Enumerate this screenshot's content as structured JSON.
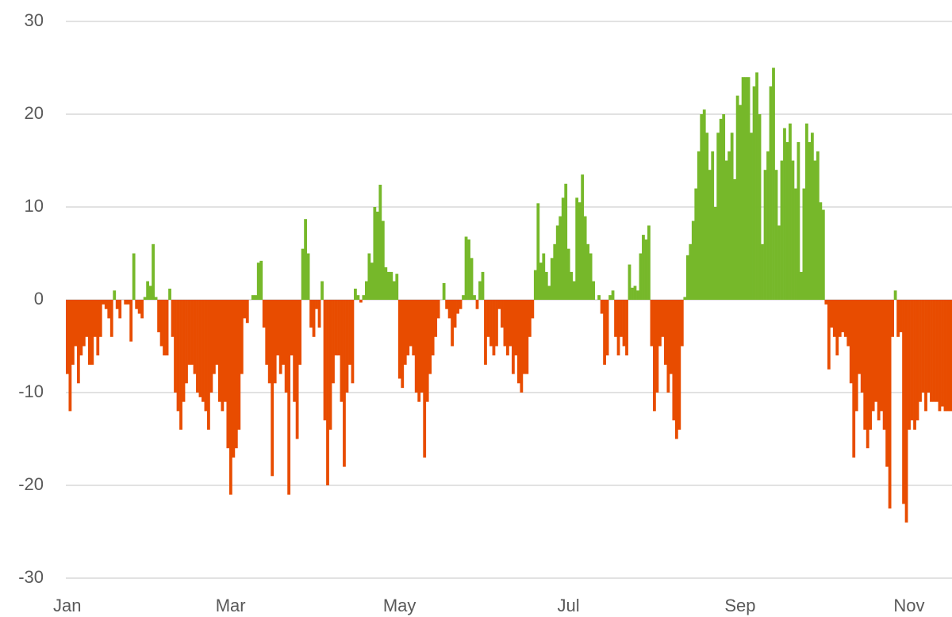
{
  "chart_data": {
    "type": "bar",
    "categories": [
      "Jan",
      null,
      null,
      null,
      null,
      null,
      null,
      null,
      null,
      null,
      null,
      null,
      null,
      null,
      null,
      null,
      null,
      null,
      null,
      null,
      null,
      null,
      null,
      null,
      null,
      null,
      null,
      null,
      null,
      null,
      null,
      null,
      null,
      null,
      null,
      null,
      null,
      null,
      null,
      null,
      null,
      null,
      null,
      null,
      null,
      null,
      null,
      null,
      null,
      null,
      null,
      null,
      null,
      null,
      null,
      null,
      null,
      null,
      null,
      "Mar",
      null,
      null,
      null,
      null,
      null,
      null,
      null,
      null,
      null,
      null,
      null,
      null,
      null,
      null,
      null,
      null,
      null,
      null,
      null,
      null,
      null,
      null,
      null,
      null,
      null,
      null,
      null,
      null,
      null,
      null,
      null,
      null,
      null,
      null,
      null,
      null,
      null,
      null,
      null,
      null,
      null,
      null,
      null,
      null,
      null,
      null,
      null,
      null,
      null,
      null,
      null,
      null,
      null,
      null,
      null,
      null,
      null,
      null,
      null,
      null,
      "May",
      null,
      null,
      null,
      null,
      null,
      null,
      null,
      null,
      null,
      null,
      null,
      null,
      null,
      null,
      null,
      null,
      null,
      null,
      null,
      null,
      null,
      null,
      null,
      null,
      null,
      null,
      null,
      null,
      null,
      null,
      null,
      null,
      null,
      null,
      null,
      null,
      null,
      null,
      null,
      null,
      null,
      null,
      null,
      null,
      null,
      null,
      null,
      null,
      null,
      null,
      null,
      null,
      null,
      null,
      null,
      null,
      null,
      null,
      null,
      null,
      "Jul",
      null,
      null,
      null,
      null,
      null,
      null,
      null,
      null,
      null,
      null,
      null,
      null,
      null,
      null,
      null,
      null,
      null,
      null,
      null,
      null,
      null,
      null,
      null,
      null,
      null,
      null,
      null,
      null,
      null,
      null,
      null,
      null,
      null,
      null,
      null,
      null,
      null,
      null,
      null,
      null,
      null,
      null,
      null,
      null,
      null,
      null,
      null,
      null,
      null,
      null,
      null,
      null,
      null,
      null,
      null,
      null,
      null,
      null,
      null,
      null,
      null,
      "Sep",
      null,
      null,
      null,
      null,
      null,
      null,
      null,
      null,
      null,
      null,
      null,
      null,
      null,
      null,
      null,
      null,
      null,
      null,
      null,
      null,
      null,
      null,
      null,
      null,
      null,
      null,
      null,
      null,
      null,
      null,
      null,
      null,
      null,
      null,
      null,
      null,
      null,
      null,
      null,
      null,
      null,
      null,
      null,
      null,
      null,
      null,
      null,
      null,
      null,
      null,
      null,
      null,
      null,
      null,
      null,
      null,
      null,
      null,
      null,
      null,
      "Nov",
      null,
      null,
      null,
      null,
      null,
      null,
      null,
      null,
      null,
      null,
      null,
      null,
      null,
      null,
      null
    ],
    "values": [
      -8,
      -12,
      -7,
      -5,
      -9,
      -6,
      -5,
      -4,
      -7,
      -7,
      -4,
      -6,
      -4,
      -0.5,
      -1,
      -2,
      -4,
      1,
      -1,
      -2,
      0,
      -0.5,
      -0.5,
      -4.5,
      5,
      -1,
      -1.5,
      -2,
      0.3,
      2,
      1.5,
      6,
      0.3,
      -3.5,
      -5,
      -6,
      -6,
      1.2,
      -4,
      -10,
      -12,
      -14,
      -11,
      -9,
      -7,
      -7,
      -8,
      -10,
      -10.5,
      -11,
      -12,
      -14,
      -10,
      -8,
      -7,
      -11,
      -12,
      -11,
      -16,
      -21,
      -17,
      -16,
      -14,
      -8,
      -2,
      -2.5,
      0,
      0.5,
      0.5,
      4,
      4.2,
      -3,
      -7,
      -9,
      -19,
      -9,
      -6,
      -8,
      -7,
      -10,
      -21,
      -6,
      -11,
      -15,
      -7,
      5.5,
      8.7,
      5,
      -3,
      -4,
      -1,
      -3,
      2,
      -13,
      -20,
      -14,
      -9,
      -6,
      -6,
      -11,
      -18,
      -10,
      -7,
      -9,
      1.2,
      0.5,
      -0.3,
      0.5,
      2,
      5,
      4,
      10,
      9.5,
      12.4,
      8.5,
      3.5,
      3,
      3,
      2,
      2.8,
      -8.5,
      -9.5,
      -7,
      -6,
      -5,
      -6,
      -10,
      -11,
      -10,
      -17,
      -11,
      -8,
      -6,
      -4,
      -2,
      0,
      1.8,
      -1,
      -2,
      -5,
      -3,
      -1.5,
      -1,
      0.5,
      6.8,
      6.5,
      4.5,
      0.5,
      -1,
      2,
      3,
      -7,
      -4,
      -5,
      -6,
      -5,
      -1,
      -3,
      -5,
      -6,
      -5,
      -8,
      -6,
      -9,
      -10,
      -8,
      -8,
      -4,
      -2,
      3.2,
      10.4,
      4,
      5,
      3,
      1.5,
      4.5,
      6,
      8,
      9,
      11,
      12.5,
      5.5,
      3,
      2,
      11,
      10.5,
      13.5,
      9,
      6,
      5,
      2,
      0,
      0.5,
      -1.5,
      -7,
      -6,
      0.5,
      1,
      -4,
      -6,
      -4,
      -5,
      -6,
      3.8,
      1.3,
      1.5,
      1,
      5,
      7,
      6.5,
      8,
      -5,
      -12,
      -10,
      -5,
      -4,
      -7,
      -10,
      -8,
      -13,
      -15,
      -14,
      -5,
      0.3,
      4.8,
      6,
      8.5,
      12,
      16,
      20,
      20.5,
      18,
      14,
      16,
      10,
      18,
      19.5,
      20,
      15,
      16,
      18,
      13,
      22,
      21,
      24,
      24,
      24,
      18,
      23,
      24.5,
      20,
      6,
      14,
      16,
      23,
      25,
      14,
      8,
      15,
      18.5,
      17,
      19,
      15,
      12,
      17,
      3,
      12,
      19,
      17,
      18,
      15,
      16,
      10.5,
      9.7,
      -0.5,
      -7.5,
      -3,
      -4,
      -6,
      -4,
      -3.5,
      -4,
      -5,
      -9,
      -17,
      -12,
      -8,
      -10,
      -14,
      -16,
      -14,
      -12,
      -11,
      -13,
      -12,
      -14,
      -18,
      -22.5,
      -4,
      1,
      -4,
      -3.5,
      -22,
      -24,
      -14,
      -13,
      -14,
      -13,
      -11,
      -10,
      -12,
      -10,
      -11,
      -11,
      -11,
      -12,
      -11.5,
      -12,
      -12,
      -12
    ],
    "positive_color": "#76b82a",
    "negative_color": "#e84c00",
    "ylim": [
      -30,
      30
    ],
    "yticks": [
      -30,
      -20,
      -10,
      0,
      10,
      20,
      30
    ],
    "grid": true
  }
}
